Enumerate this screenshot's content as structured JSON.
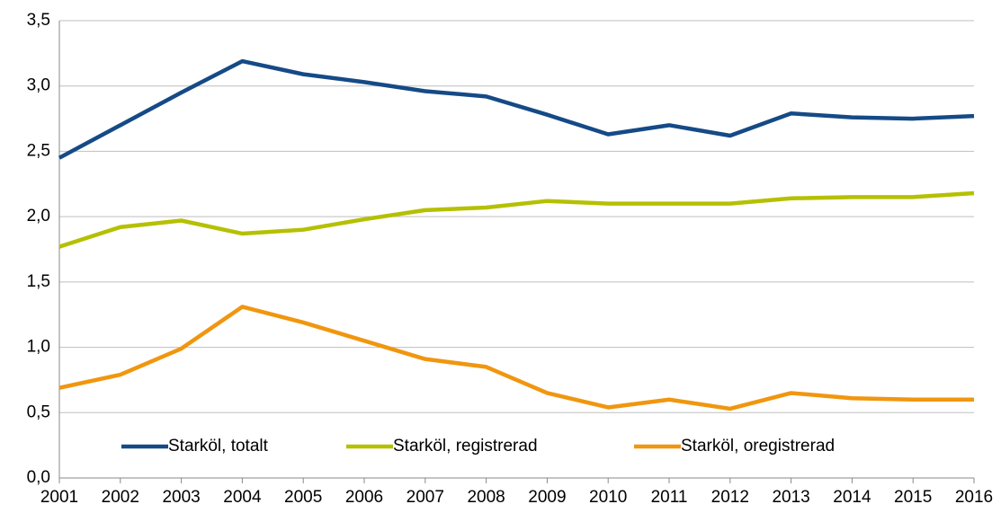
{
  "chart_data": {
    "type": "line",
    "categories": [
      "2001",
      "2002",
      "2003",
      "2004",
      "2005",
      "2006",
      "2007",
      "2008",
      "2009",
      "2010",
      "2011",
      "2012",
      "2013",
      "2014",
      "2015",
      "2016"
    ],
    "series": [
      {
        "name": "Starköl, totalt",
        "color": "#154a86",
        "values": [
          2.45,
          2.7,
          2.95,
          3.19,
          3.09,
          3.03,
          2.96,
          2.92,
          2.78,
          2.63,
          2.7,
          2.62,
          2.79,
          2.76,
          2.75,
          2.77
        ]
      },
      {
        "name": "Starköl, registrerad",
        "color": "#b5c000",
        "values": [
          1.77,
          1.92,
          1.97,
          1.87,
          1.9,
          1.98,
          2.05,
          2.07,
          2.12,
          2.1,
          2.1,
          2.1,
          2.14,
          2.15,
          2.15,
          2.18
        ]
      },
      {
        "name": "Starköl, oregistrerad",
        "color": "#f0960f",
        "values": [
          0.69,
          0.79,
          0.99,
          1.31,
          1.19,
          1.05,
          0.91,
          0.85,
          0.65,
          0.54,
          0.6,
          0.53,
          0.65,
          0.61,
          0.6,
          0.6
        ]
      }
    ],
    "ylim": [
      0,
      3.5
    ],
    "yticks": [
      {
        "value": 0,
        "label": "0,0"
      },
      {
        "value": 0.5,
        "label": "0,5"
      },
      {
        "value": 1,
        "label": "1,0"
      },
      {
        "value": 1.5,
        "label": "1,5"
      },
      {
        "value": 2,
        "label": "2,0"
      },
      {
        "value": 2.5,
        "label": "2,5"
      },
      {
        "value": 3,
        "label": "3,0"
      },
      {
        "value": 3.5,
        "label": "3,5"
      }
    ],
    "grid": true,
    "legend": "bottom"
  }
}
